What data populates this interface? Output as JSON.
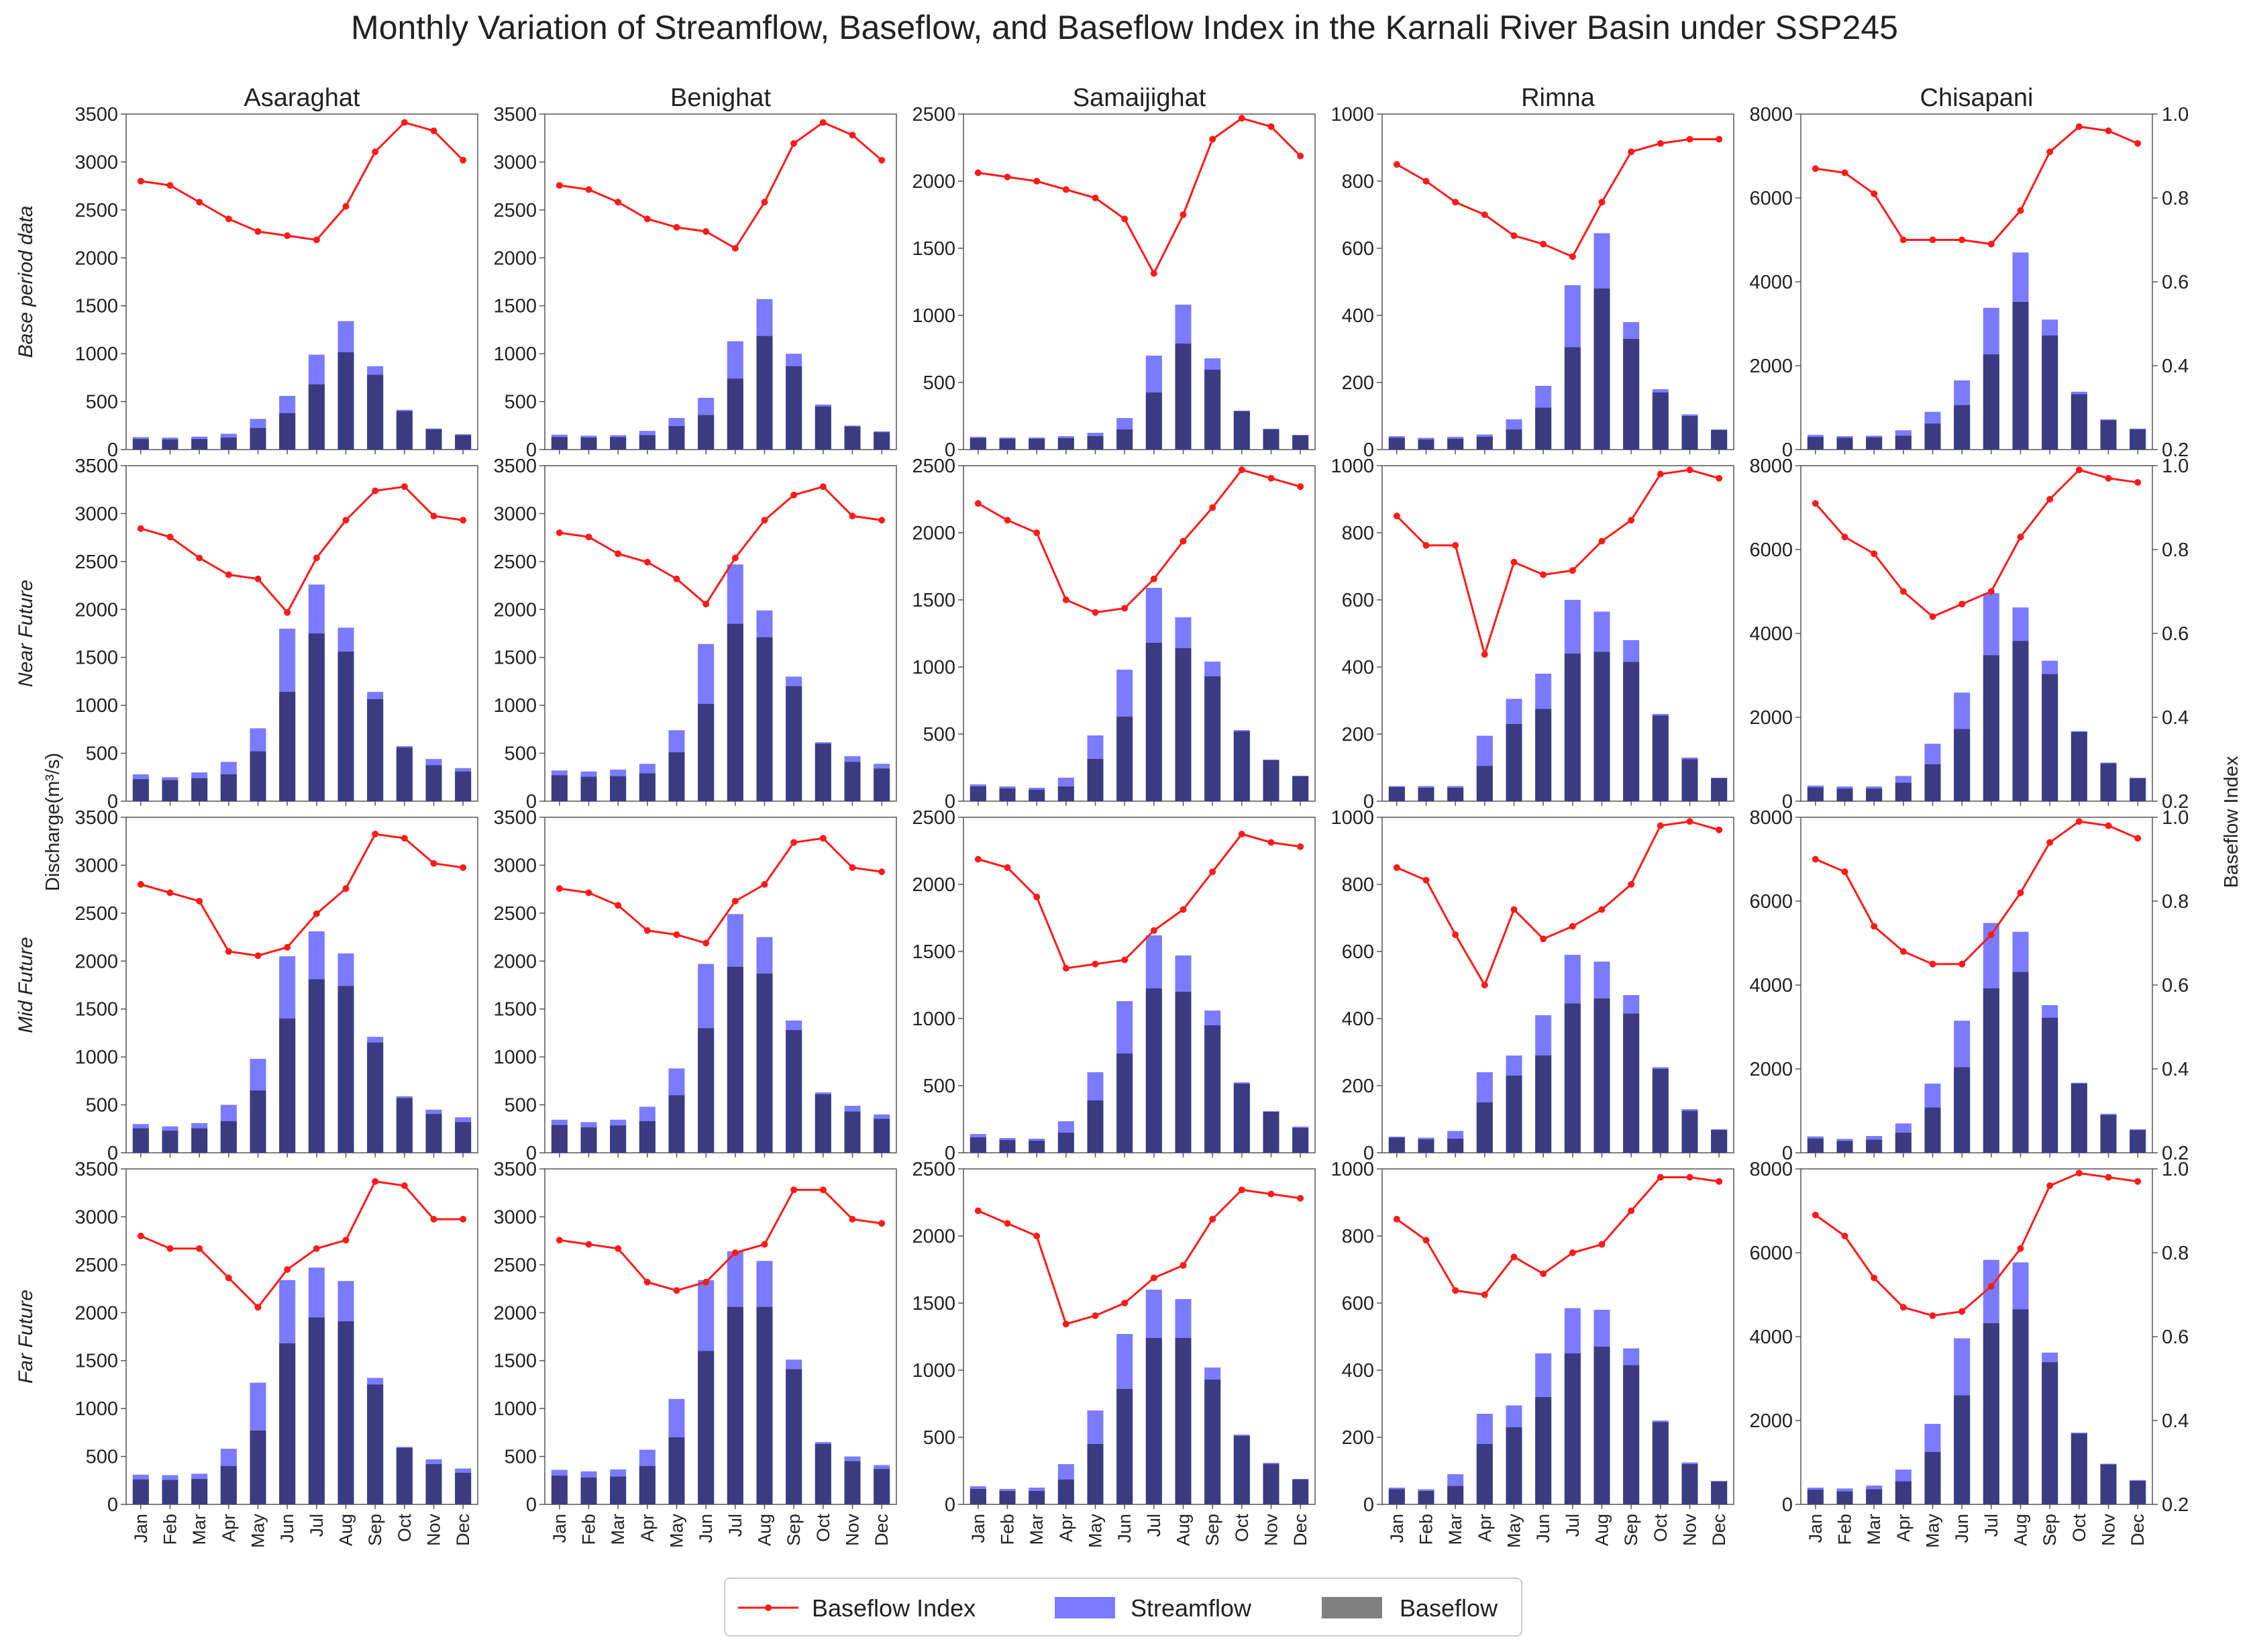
{
  "chart_data": {
    "type": "bar",
    "title": "Monthly Variation of Streamflow, Baseflow, and Baseflow Index in the Karnali River Basin under SSP245",
    "ylabel": "Discharge(m³/s)",
    "y2label": "Baseflow Index",
    "y2lim": [
      0.2,
      1.0
    ],
    "y2ticks": [
      "0.2",
      "0.4",
      "0.6",
      "0.8",
      "1.0"
    ],
    "months": [
      "Jan",
      "Feb",
      "Mar",
      "Apr",
      "May",
      "Jun",
      "Jul",
      "Aug",
      "Sep",
      "Oct",
      "Nov",
      "Dec"
    ],
    "periods": [
      "Base period data",
      "Near Future",
      "Mid Future",
      "Far Future"
    ],
    "legend": {
      "bfi": "Baseflow Index",
      "streamflow": "Streamflow",
      "baseflow": "Baseflow"
    },
    "colors": {
      "streamflow": "#7b7bff",
      "baseflow": "#3b3b82",
      "bfi": "#ff1a1a",
      "axis": "#555555"
    },
    "stations": [
      {
        "name": "Asaraghat",
        "ymax": 3500,
        "yticks": [
          "0",
          "500",
          "1000",
          "1500",
          "2000",
          "2500",
          "3000",
          "3500"
        ],
        "rows": [
          {
            "streamflow": [
              130,
              125,
              135,
              165,
              320,
              560,
              990,
              1340,
              870,
              415,
              220,
              160
            ],
            "baseflow": [
              110,
              105,
              110,
              125,
              225,
              380,
              680,
              1015,
              780,
              400,
              210,
              150
            ],
            "bfi": [
              0.84,
              0.83,
              0.79,
              0.75,
              0.72,
              0.71,
              0.7,
              0.78,
              0.91,
              0.98,
              0.96,
              0.89
            ]
          },
          {
            "streamflow": [
              280,
              250,
              300,
              410,
              760,
              1800,
              2260,
              1810,
              1140,
              575,
              440,
              345
            ],
            "baseflow": [
              230,
              220,
              240,
              280,
              520,
              1140,
              1750,
              1560,
              1065,
              560,
              375,
              310
            ],
            "bfi": [
              0.85,
              0.83,
              0.78,
              0.74,
              0.73,
              0.65,
              0.78,
              0.87,
              0.94,
              0.95,
              0.88,
              0.87
            ]
          },
          {
            "streamflow": [
              300,
              275,
              310,
              500,
              980,
              2050,
              2310,
              2080,
              1210,
              590,
              450,
              370
            ],
            "baseflow": [
              255,
              230,
              255,
              330,
              650,
              1400,
              1810,
              1740,
              1150,
              570,
              405,
              320
            ],
            "bfi": [
              0.84,
              0.82,
              0.8,
              0.68,
              0.67,
              0.69,
              0.77,
              0.83,
              0.96,
              0.95,
              0.89,
              0.88
            ]
          },
          {
            "streamflow": [
              310,
              305,
              320,
              580,
              1270,
              2340,
              2470,
              2330,
              1320,
              600,
              470,
              375
            ],
            "baseflow": [
              260,
              255,
              265,
              400,
              770,
              1680,
              1950,
              1910,
              1250,
              590,
              420,
              330
            ],
            "bfi": [
              0.84,
              0.81,
              0.81,
              0.74,
              0.67,
              0.76,
              0.81,
              0.83,
              0.97,
              0.96,
              0.88,
              0.88
            ]
          }
        ]
      },
      {
        "name": "Benighat",
        "ymax": 3500,
        "yticks": [
          "0",
          "500",
          "1000",
          "1500",
          "2000",
          "2500",
          "3000",
          "3500"
        ],
        "rows": [
          {
            "streamflow": [
              155,
              145,
              150,
              195,
              330,
              540,
              1130,
              1570,
              1000,
              470,
              250,
              190
            ],
            "baseflow": [
              130,
              125,
              130,
              150,
              245,
              360,
              740,
              1185,
              870,
              450,
              240,
              180
            ],
            "bfi": [
              0.83,
              0.82,
              0.79,
              0.75,
              0.73,
              0.72,
              0.68,
              0.79,
              0.93,
              0.98,
              0.95,
              0.89
            ]
          },
          {
            "streamflow": [
              320,
              310,
              330,
              390,
              740,
              1640,
              2470,
              1990,
              1300,
              615,
              470,
              390
            ],
            "baseflow": [
              270,
              255,
              260,
              290,
              510,
              1015,
              1850,
              1710,
              1200,
              600,
              410,
              340
            ],
            "bfi": [
              0.84,
              0.83,
              0.79,
              0.77,
              0.73,
              0.67,
              0.78,
              0.87,
              0.93,
              0.95,
              0.88,
              0.87
            ]
          },
          {
            "streamflow": [
              345,
              320,
              345,
              480,
              880,
              1970,
              2490,
              2250,
              1380,
              630,
              490,
              400
            ],
            "baseflow": [
              290,
              265,
              285,
              330,
              600,
              1300,
              1940,
              1870,
              1280,
              610,
              430,
              355
            ],
            "bfi": [
              0.83,
              0.82,
              0.79,
              0.73,
              0.72,
              0.7,
              0.8,
              0.84,
              0.94,
              0.95,
              0.88,
              0.87
            ]
          },
          {
            "streamflow": [
              360,
              345,
              365,
              570,
              1100,
              2340,
              2640,
              2540,
              1510,
              650,
              500,
              410
            ],
            "baseflow": [
              300,
              280,
              290,
              400,
              700,
              1600,
              2060,
              2060,
              1410,
              630,
              450,
              370
            ],
            "bfi": [
              0.83,
              0.82,
              0.81,
              0.73,
              0.71,
              0.73,
              0.8,
              0.82,
              0.95,
              0.95,
              0.88,
              0.87
            ]
          }
        ]
      },
      {
        "name": "Samaijighat",
        "ymax": 2500,
        "yticks": [
          "0",
          "500",
          "1000",
          "1500",
          "2000",
          "2500"
        ],
        "rows": [
          {
            "streamflow": [
              95,
              90,
              90,
              100,
              125,
              235,
              700,
              1080,
              680,
              290,
              155,
              110
            ],
            "baseflow": [
              85,
              80,
              80,
              85,
              100,
              150,
              425,
              790,
              595,
              285,
              150,
              105
            ],
            "bfi": [
              0.86,
              0.85,
              0.84,
              0.82,
              0.8,
              0.75,
              0.62,
              0.76,
              0.94,
              0.99,
              0.97,
              0.9
            ]
          },
          {
            "streamflow": [
              125,
              110,
              100,
              175,
              490,
              980,
              1590,
              1370,
              1040,
              530,
              310,
              190
            ],
            "baseflow": [
              110,
              95,
              85,
              110,
              315,
              630,
              1180,
              1140,
              930,
              520,
              305,
              185
            ],
            "bfi": [
              0.91,
              0.87,
              0.84,
              0.68,
              0.65,
              0.66,
              0.73,
              0.82,
              0.9,
              0.99,
              0.97,
              0.95
            ]
          },
          {
            "streamflow": [
              140,
              110,
              105,
              235,
              600,
              1130,
              1620,
              1470,
              1060,
              525,
              310,
              195
            ],
            "baseflow": [
              115,
              95,
              90,
              150,
              390,
              740,
              1225,
              1200,
              950,
              515,
              305,
              185
            ],
            "bfi": [
              0.9,
              0.88,
              0.81,
              0.64,
              0.65,
              0.66,
              0.73,
              0.78,
              0.87,
              0.96,
              0.94,
              0.93
            ]
          },
          {
            "streamflow": [
              135,
              115,
              125,
              300,
              700,
              1270,
              1600,
              1530,
              1020,
              520,
              310,
              190
            ],
            "baseflow": [
              115,
              100,
              100,
              185,
              450,
              860,
              1240,
              1240,
              930,
              510,
              300,
              185
            ],
            "bfi": [
              0.9,
              0.87,
              0.84,
              0.63,
              0.65,
              0.68,
              0.74,
              0.77,
              0.88,
              0.95,
              0.94,
              0.93
            ]
          }
        ]
      },
      {
        "name": "Rimna",
        "ymax": 1000,
        "yticks": [
          "0",
          "200",
          "400",
          "600",
          "800",
          "1000"
        ],
        "rows": [
          {
            "streamflow": [
              40,
              35,
              38,
              45,
              90,
              190,
              490,
              645,
              380,
              180,
              105,
              60
            ],
            "baseflow": [
              35,
              30,
              32,
              38,
              60,
              125,
              305,
              480,
              330,
              170,
              100,
              58
            ],
            "bfi": [
              0.88,
              0.84,
              0.79,
              0.76,
              0.71,
              0.69,
              0.66,
              0.79,
              0.91,
              0.93,
              0.94,
              0.94
            ]
          },
          {
            "streamflow": [
              45,
              45,
              45,
              195,
              305,
              380,
              600,
              565,
              480,
              260,
              130,
              70
            ],
            "baseflow": [
              42,
              40,
              40,
              105,
              230,
              275,
              440,
              445,
              415,
              255,
              125,
              68
            ],
            "bfi": [
              0.88,
              0.81,
              0.81,
              0.55,
              0.77,
              0.74,
              0.75,
              0.82,
              0.87,
              0.98,
              0.99,
              0.97
            ]
          },
          {
            "streamflow": [
              48,
              45,
              65,
              240,
              290,
              410,
              590,
              570,
              470,
              255,
              130,
              70
            ],
            "baseflow": [
              45,
              40,
              42,
              150,
              230,
              290,
              445,
              460,
              415,
              250,
              125,
              68
            ],
            "bfi": [
              0.88,
              0.85,
              0.72,
              0.6,
              0.78,
              0.71,
              0.74,
              0.78,
              0.84,
              0.98,
              0.99,
              0.97
            ]
          },
          {
            "streamflow": [
              50,
              45,
              90,
              270,
              295,
              450,
              585,
              580,
              465,
              250,
              125,
              70
            ],
            "baseflow": [
              45,
              40,
              55,
              180,
              230,
              320,
              450,
              470,
              415,
              245,
              120,
              68
            ],
            "bfi": [
              0.88,
              0.83,
              0.71,
              0.7,
              0.79,
              0.75,
              0.8,
              0.82,
              0.9,
              0.98,
              0.98,
              0.97
            ]
          }
        ]
      },
      {
        "name": "Chisapani",
        "ymax": 8000,
        "yticks": [
          "0",
          "2000",
          "4000",
          "6000",
          "8000"
        ],
        "rows": [
          {
            "streamflow": [
              350,
              320,
              330,
              460,
              900,
              1650,
              3380,
              4700,
              3100,
              1380,
              720,
              500
            ],
            "baseflow": [
              300,
              280,
              290,
              330,
              620,
              1060,
              2270,
              3520,
              2720,
              1320,
              700,
              480
            ],
            "bfi": [
              0.87,
              0.86,
              0.81,
              0.7,
              0.7,
              0.7,
              0.69,
              0.77,
              0.91,
              0.97,
              0.96,
              0.93
            ]
          },
          {
            "streamflow": [
              370,
              350,
              350,
              600,
              1370,
              2590,
              4960,
              4620,
              3350,
              1670,
              920,
              560
            ],
            "baseflow": [
              330,
              300,
              300,
              440,
              880,
              1720,
              3480,
              3820,
              3030,
              1650,
              900,
              540
            ],
            "bfi": [
              0.91,
              0.83,
              0.79,
              0.7,
              0.64,
              0.67,
              0.7,
              0.83,
              0.92,
              0.99,
              0.97,
              0.96
            ]
          },
          {
            "streamflow": [
              390,
              330,
              400,
              700,
              1650,
              3150,
              5480,
              5270,
              3520,
              1670,
              930,
              560
            ],
            "baseflow": [
              340,
              280,
              310,
              480,
              1080,
              2040,
              3920,
              4310,
              3220,
              1650,
              900,
              540
            ],
            "bfi": [
              0.9,
              0.87,
              0.74,
              0.68,
              0.65,
              0.65,
              0.72,
              0.82,
              0.94,
              0.99,
              0.98,
              0.95
            ]
          },
          {
            "streamflow": [
              400,
              380,
              450,
              830,
              1920,
              3960,
              5830,
              5770,
              3620,
              1710,
              970,
              580
            ],
            "baseflow": [
              350,
              310,
              360,
              550,
              1250,
              2600,
              4320,
              4650,
              3390,
              1690,
              950,
              560
            ],
            "bfi": [
              0.89,
              0.84,
              0.74,
              0.67,
              0.65,
              0.66,
              0.72,
              0.81,
              0.96,
              0.99,
              0.98,
              0.97
            ]
          }
        ]
      }
    ]
  }
}
